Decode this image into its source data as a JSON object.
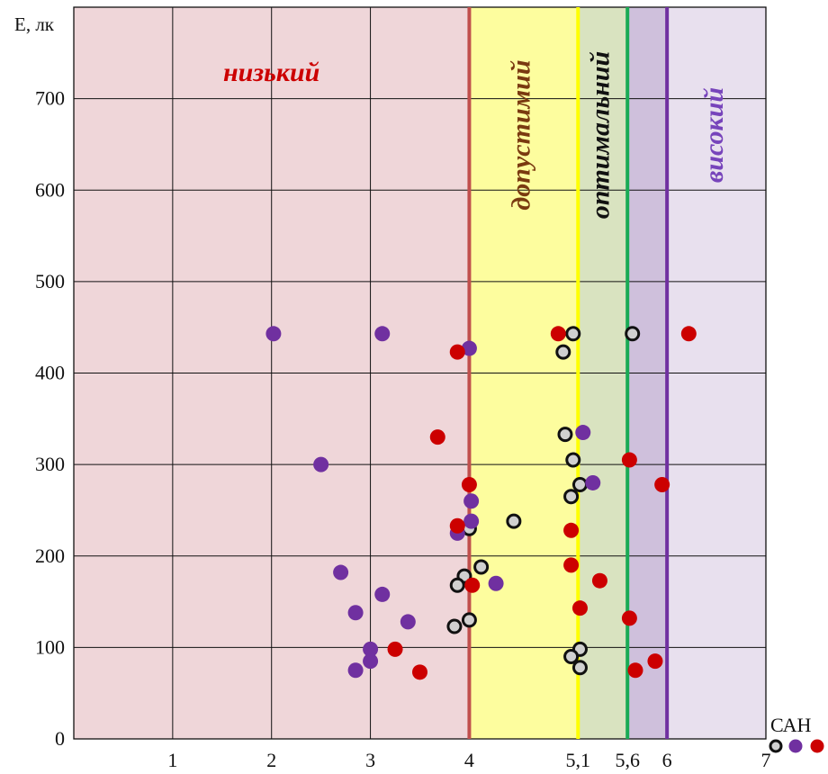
{
  "chart_data": {
    "type": "scatter",
    "ylabel": "E, лк",
    "legend_label": "САН",
    "xlim": [
      0,
      7
    ],
    "ylim": [
      0,
      800
    ],
    "x_ticks": [
      {
        "value": 1,
        "label": "1",
        "color": "#111111"
      },
      {
        "value": 2,
        "label": "2",
        "color": "#111111"
      },
      {
        "value": 3,
        "label": "3",
        "color": "#111111"
      },
      {
        "value": 4,
        "label": "4",
        "color": "#cc1111"
      },
      {
        "value": 5.1,
        "label": "5,1",
        "color": "#f0b020"
      },
      {
        "value": 5.6,
        "label": "5,6",
        "color": "#119955"
      },
      {
        "value": 6,
        "label": "6",
        "color": "#7744bb"
      },
      {
        "value": 7,
        "label": "7",
        "color": "#111111"
      }
    ],
    "y_ticks": [
      {
        "value": 0,
        "label": "0"
      },
      {
        "value": 100,
        "label": "100"
      },
      {
        "value": 200,
        "label": "200"
      },
      {
        "value": 300,
        "label": "300"
      },
      {
        "value": 400,
        "label": "400"
      },
      {
        "value": 500,
        "label": "500"
      },
      {
        "value": 600,
        "label": "600"
      },
      {
        "value": 700,
        "label": "700"
      }
    ],
    "zones": [
      {
        "label": "низький",
        "from": 0,
        "to": 4,
        "fill": "#efd6d9",
        "text_color": "#cc0000"
      },
      {
        "label": "допустимий",
        "from": 4,
        "to": 5.1,
        "fill": "#fdfd9e",
        "text_color": "#7a3a10"
      },
      {
        "label": "оптимальний",
        "from": 5.1,
        "to": 5.6,
        "fill": "#d9e3c0",
        "text_color": "#111111"
      },
      {
        "label": "",
        "from": 5.6,
        "to": 6,
        "fill": "#cfc0dc",
        "text_color": "#111111"
      },
      {
        "label": "високий",
        "from": 6,
        "to": 7,
        "fill": "#e8e0ee",
        "text_color": "#7744bb"
      }
    ],
    "boundaries": [
      {
        "x": 4,
        "color": "#c0504d"
      },
      {
        "x": 5.1,
        "color": "#ffff00"
      },
      {
        "x": 5.6,
        "color": "#1aaa55"
      },
      {
        "x": 6,
        "color": "#7030a0"
      }
    ],
    "series": [
      {
        "marker": "ring",
        "color": "#111111",
        "fill": "#d0d0d0",
        "points": [
          [
            5.05,
            443
          ],
          [
            5.65,
            443
          ],
          [
            4.95,
            423
          ],
          [
            4.97,
            333
          ],
          [
            5.05,
            305
          ],
          [
            5.12,
            278
          ],
          [
            5.03,
            265
          ],
          [
            4.45,
            238
          ],
          [
            4.0,
            230
          ],
          [
            4.12,
            188
          ],
          [
            3.95,
            178
          ],
          [
            3.88,
            168
          ],
          [
            4.0,
            130
          ],
          [
            3.85,
            123
          ],
          [
            5.12,
            98
          ],
          [
            5.03,
            90
          ],
          [
            5.12,
            78
          ]
        ]
      },
      {
        "marker": "dot",
        "color": "#7030a0",
        "points": [
          [
            2.02,
            443
          ],
          [
            3.12,
            443
          ],
          [
            4.0,
            427
          ],
          [
            5.15,
            335
          ],
          [
            2.5,
            300
          ],
          [
            5.25,
            280
          ],
          [
            4.02,
            260
          ],
          [
            4.02,
            238
          ],
          [
            3.88,
            225
          ],
          [
            2.7,
            182
          ],
          [
            4.27,
            170
          ],
          [
            3.12,
            158
          ],
          [
            2.85,
            138
          ],
          [
            3.38,
            128
          ],
          [
            3.0,
            98
          ],
          [
            3.0,
            85
          ],
          [
            2.85,
            75
          ]
        ]
      },
      {
        "marker": "dot",
        "color": "#cc0000",
        "points": [
          [
            4.9,
            443
          ],
          [
            6.22,
            443
          ],
          [
            3.88,
            423
          ],
          [
            3.68,
            330
          ],
          [
            5.62,
            305
          ],
          [
            4.0,
            278
          ],
          [
            5.95,
            278
          ],
          [
            3.88,
            233
          ],
          [
            5.03,
            228
          ],
          [
            5.03,
            190
          ],
          [
            5.32,
            173
          ],
          [
            4.03,
            168
          ],
          [
            5.12,
            143
          ],
          [
            5.62,
            132
          ],
          [
            3.25,
            98
          ],
          [
            3.5,
            73
          ],
          [
            5.68,
            75
          ],
          [
            5.88,
            85
          ]
        ]
      }
    ]
  }
}
